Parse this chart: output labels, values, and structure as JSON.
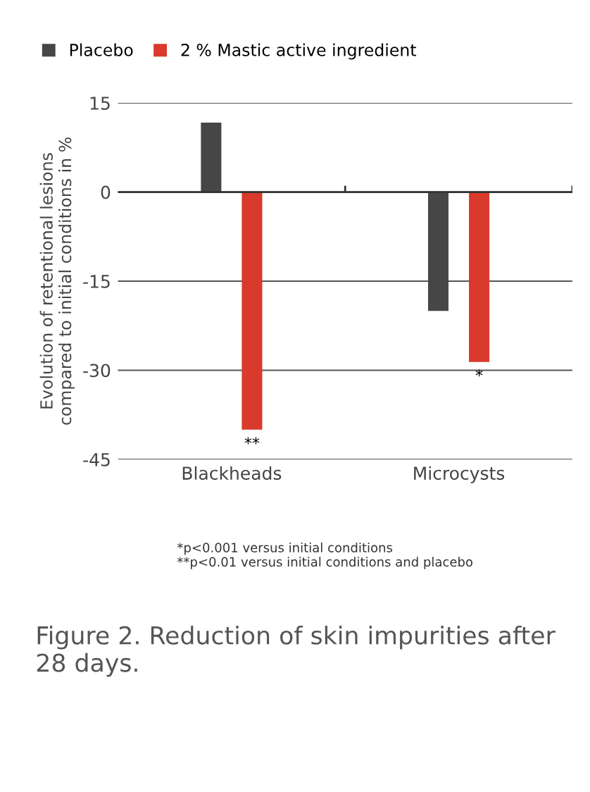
{
  "chart_data": {
    "type": "bar",
    "ylabel": "Evolution of retentional lesions\ncompared to initial conditions in %",
    "categories": [
      "Blackheads",
      "Microcysts"
    ],
    "series": [
      {
        "name": "Placebo",
        "color": "#464646",
        "values": [
          11.7,
          -20
        ]
      },
      {
        "name": "2 % Mastic active ingredient",
        "color": "#d93a2b",
        "values": [
          -40,
          -28.6
        ]
      }
    ],
    "ylim": [
      -45,
      15
    ],
    "yticks": [
      -45,
      -30,
      -15,
      0,
      15
    ],
    "grid": "y",
    "legend": "top left",
    "annotations": [
      "**",
      "*",
      "*p<0.001 versus initial conditions\n**p<0.01 versus initial conditions and placebo",
      "Figure 2. Reduction of skin impurities after 28 days."
    ]
  }
}
